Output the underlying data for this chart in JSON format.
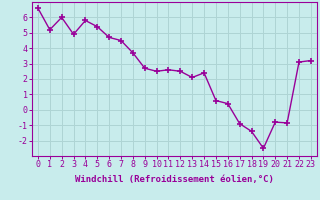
{
  "x": [
    0,
    1,
    2,
    3,
    4,
    5,
    6,
    7,
    8,
    9,
    10,
    11,
    12,
    13,
    14,
    15,
    16,
    17,
    18,
    19,
    20,
    21,
    22,
    23
  ],
  "y": [
    6.6,
    5.2,
    6.0,
    4.9,
    5.8,
    5.4,
    4.7,
    4.5,
    3.7,
    2.7,
    2.5,
    2.6,
    2.5,
    2.1,
    2.4,
    0.6,
    0.4,
    -0.9,
    -1.4,
    -2.5,
    -0.8,
    -0.85,
    3.1,
    3.2
  ],
  "line_color": "#990099",
  "marker": "+",
  "marker_size": 4,
  "linewidth": 1.0,
  "markeredgewidth": 1.2,
  "xlabel": "Windchill (Refroidissement éolien,°C)",
  "ylim": [
    -3,
    7
  ],
  "xlim": [
    -0.5,
    23.5
  ],
  "yticks": [
    -2,
    -1,
    0,
    1,
    2,
    3,
    4,
    5,
    6
  ],
  "xtick_labels": [
    "0",
    "1",
    "2",
    "3",
    "4",
    "5",
    "6",
    "7",
    "8",
    "9",
    "10",
    "11",
    "12",
    "13",
    "14",
    "15",
    "16",
    "17",
    "18",
    "19",
    "20",
    "21",
    "22",
    "23"
  ],
  "bg_color": "#c8ecec",
  "grid_color": "#aed4d4",
  "spine_color": "#990099",
  "tick_color": "#990099",
  "label_color": "#990099",
  "xlabel_fontsize": 6.5,
  "tick_fontsize": 6.0
}
